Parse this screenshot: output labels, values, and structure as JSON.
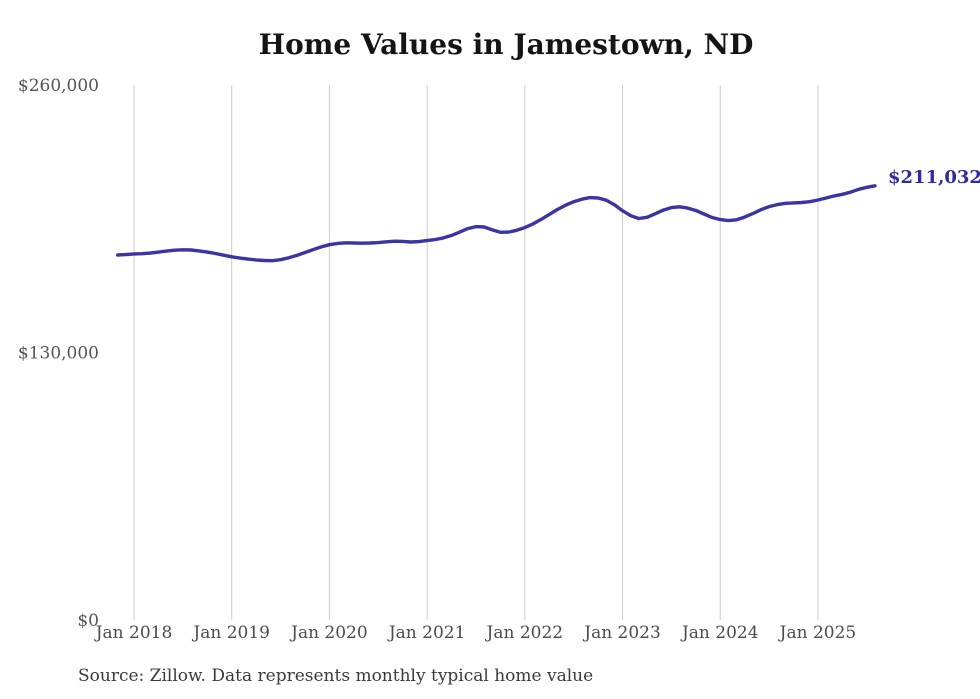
{
  "footer": {
    "source": "Source: Zillow. Data represents monthly typical home value"
  },
  "chart_data": {
    "type": "line",
    "title": "Home Values in Jamestown, ND",
    "latest_value_label": "$211,032",
    "latest_value": 211032,
    "unit": "USD",
    "frequency": "monthly",
    "start_month": "2017-11",
    "end_month": "2025-08",
    "ylim": [
      0,
      260000
    ],
    "grid": "vertical-only",
    "legend": "none",
    "colors": {
      "line": "#3b34a4",
      "latest_label": "#2f2aa0",
      "gridline": "#cccccc",
      "x_tick_text": "#4c4c4c",
      "y_tick_text": "#545454"
    },
    "y_ticks": [
      {
        "label": "$260,000",
        "value": 260000
      },
      {
        "label": "$130,000",
        "value": 130000
      },
      {
        "label": "$0",
        "value": 0
      }
    ],
    "x_tick_labels": [
      "Jan 2018",
      "Jan 2019",
      "Jan 2020",
      "Jan 2021",
      "Jan 2022",
      "Jan 2023",
      "Jan 2024",
      "Jan 2025"
    ],
    "series_name": "Typical home value",
    "values": [
      177400,
      177600,
      177900,
      178000,
      178300,
      178800,
      179300,
      179700,
      179900,
      179800,
      179400,
      178800,
      178100,
      177300,
      176500,
      175900,
      175400,
      175000,
      174700,
      174600,
      175100,
      176000,
      177200,
      178600,
      180000,
      181300,
      182400,
      183000,
      183300,
      183200,
      183100,
      183200,
      183400,
      183800,
      184100,
      184000,
      183700,
      183900,
      184400,
      184900,
      185700,
      186900,
      188500,
      190200,
      191200,
      191000,
      189600,
      188400,
      188500,
      189400,
      190700,
      192500,
      194700,
      197100,
      199500,
      201600,
      203300,
      204500,
      205300,
      205100,
      204000,
      201800,
      198900,
      196500,
      195100,
      195700,
      197400,
      199200,
      200400,
      200800,
      200200,
      199000,
      197300,
      195600,
      194600,
      194100,
      194500,
      195800,
      197500,
      199400,
      200900,
      201900,
      202500,
      202700,
      202900,
      203300,
      204100,
      205100,
      206100,
      206900,
      207900,
      209300,
      210300,
      211032
    ]
  }
}
